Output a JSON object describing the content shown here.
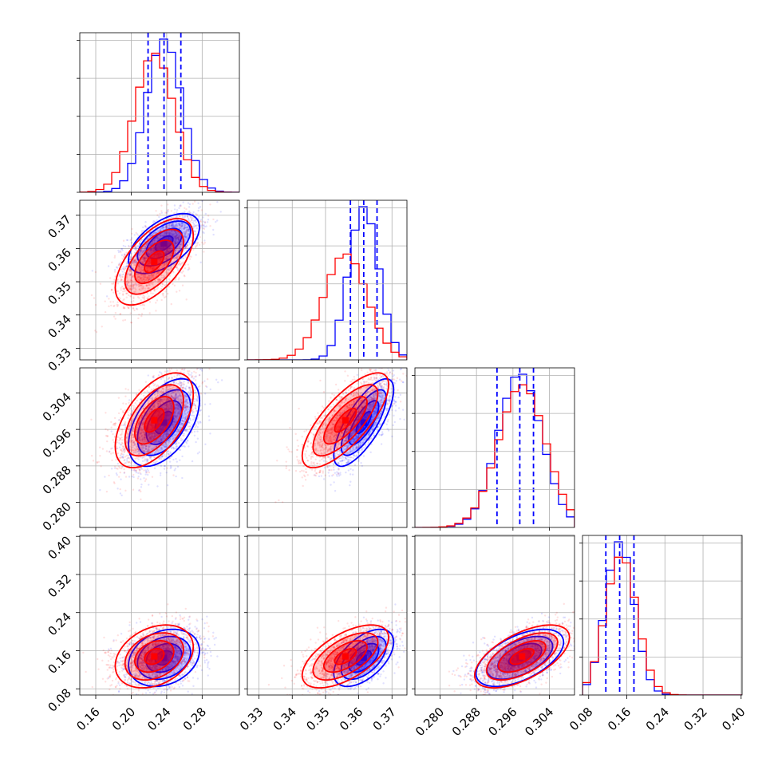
{
  "chart_data": {
    "type": "corner",
    "grid": true,
    "parameters": [
      {
        "xticks": [
          "0.16",
          "0.20",
          "0.24",
          "0.28"
        ],
        "xtick_values": [
          0.16,
          0.2,
          0.24,
          0.28
        ],
        "range": [
          0.142,
          0.322
        ],
        "yticks": [
          "0.33",
          "0.34",
          "0.35",
          "0.36",
          "0.37"
        ],
        "ytick_values": [
          0.33,
          0.34,
          0.35,
          0.36,
          0.37
        ]
      },
      {
        "xticks": [
          "0.33",
          "0.34",
          "0.35",
          "0.36",
          "0.37"
        ],
        "xtick_values": [
          0.33,
          0.34,
          0.35,
          0.36,
          0.37
        ],
        "range": [
          0.3265,
          0.3745
        ],
        "yticks": [
          "0.280",
          "0.288",
          "0.296",
          "0.304"
        ],
        "ytick_values": [
          0.28,
          0.288,
          0.296,
          0.304
        ]
      },
      {
        "xticks": [
          "0.280",
          "0.288",
          "0.296",
          "0.304"
        ],
        "xtick_values": [
          0.28,
          0.288,
          0.296,
          0.304
        ],
        "range": [
          0.2745,
          0.3095
        ],
        "yticks": [
          "0.08",
          "0.16",
          "0.24",
          "0.32",
          "0.40"
        ],
        "ytick_values": [
          0.08,
          0.16,
          0.24,
          0.32,
          0.4
        ]
      },
      {
        "xticks": [
          "0.08",
          "0.16",
          "0.24",
          "0.32",
          "0.40"
        ],
        "xtick_values": [
          0.08,
          0.16,
          0.24,
          0.32,
          0.4
        ],
        "range": [
          0.067,
          0.402
        ]
      }
    ],
    "series": [
      {
        "color": "#0000ff",
        "means": [
          0.237,
          0.3615,
          0.2975,
          0.145
        ],
        "sds": [
          0.02,
          0.0045,
          0.0048,
          0.03
        ],
        "correlations": [
          [
            1,
            0.55,
            0.5,
            0.25
          ],
          [
            0.55,
            1,
            0.75,
            0.55
          ],
          [
            0.5,
            0.75,
            1,
            0.55
          ],
          [
            0.25,
            0.55,
            0.55,
            1
          ]
        ],
        "quantiles": [
          [
            0.219,
            0.237,
            0.256
          ],
          [
            0.3575,
            0.3615,
            0.3655
          ],
          [
            0.2925,
            0.2975,
            0.3005
          ],
          [
            0.116,
            0.145,
            0.175
          ]
        ]
      },
      {
        "color": "#ff0000",
        "means": [
          0.226,
          0.356,
          0.298,
          0.148
        ],
        "sds": [
          0.022,
          0.0065,
          0.0052,
          0.033
        ],
        "correlations": [
          [
            1,
            0.6,
            0.55,
            0.3
          ],
          [
            0.6,
            1,
            0.75,
            0.6
          ],
          [
            0.55,
            0.75,
            1,
            0.6
          ],
          [
            0.3,
            0.6,
            0.6,
            1
          ]
        ]
      }
    ],
    "quantile_line_color": "#0000ff",
    "contour_levels_sigma": [
      0.5,
      1.0,
      1.5,
      2.0
    ],
    "histogram_bins": 20
  }
}
